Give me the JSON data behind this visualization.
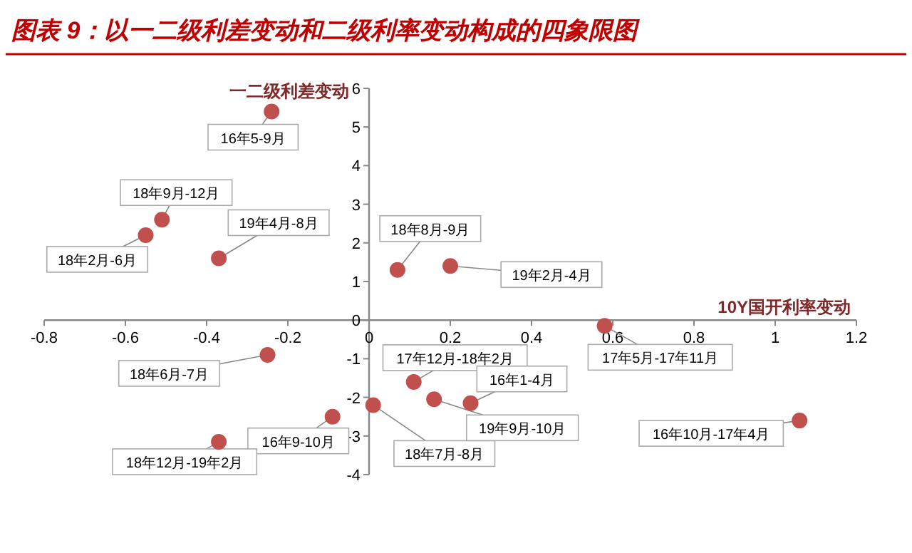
{
  "chart_data": {
    "type": "scatter",
    "title": "图表 9：以一二级利差变动和二级利率变动构成的四象限图",
    "xlabel": "10Y国开利率变动",
    "ylabel": "一二级利差变动",
    "x": [
      -0.24,
      -0.51,
      -0.55,
      -0.37,
      0.07,
      0.2,
      0.58,
      -0.25,
      -0.09,
      -0.37,
      0.01,
      0.11,
      0.16,
      0.25,
      1.06
    ],
    "values": [
      5.4,
      2.6,
      2.2,
      1.6,
      1.3,
      1.4,
      -0.15,
      -0.9,
      -2.5,
      -3.15,
      -2.2,
      -1.6,
      -2.05,
      -2.15,
      -2.6
    ],
    "value_labels": [
      "16年5-9月",
      "18年9月-12月",
      "18年2月-6月",
      "19年4月-8月",
      "18年8月-9月",
      "19年2月-4月",
      "17年5月-17年11月",
      "18年6月-7月",
      "16年9-10月",
      "18年12月-19年2月",
      "18年7月-8月",
      "17年12月-18年2月",
      "19年9月-10月",
      "16年1-4月",
      "16年10月-17年4月"
    ],
    "color": "#c0504d",
    "marker": "circle",
    "xlim": [
      -0.8,
      1.2
    ],
    "ylim": [
      -4,
      6
    ],
    "xticks": [
      -0.8,
      -0.6,
      -0.4,
      -0.2,
      0,
      0.2,
      0.4,
      0.6,
      0.8,
      1,
      1.2
    ],
    "yticks": [
      -4,
      -3,
      -2,
      -1,
      0,
      1,
      2,
      3,
      4,
      5,
      6
    ]
  }
}
